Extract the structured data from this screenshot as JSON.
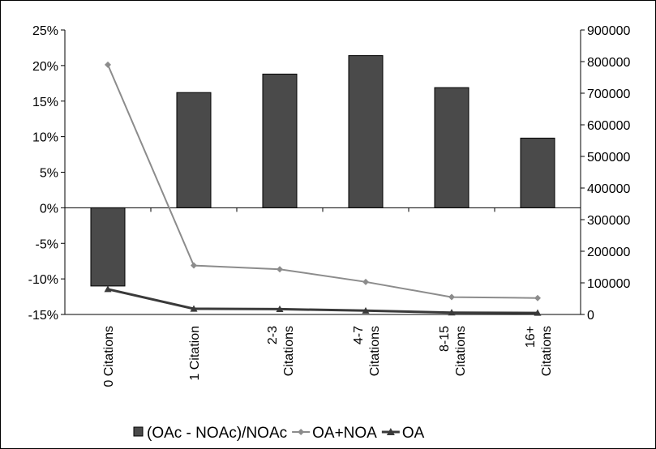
{
  "chart_data": {
    "type": "bar",
    "categories": [
      [
        "0 Citations"
      ],
      [
        "1 Citation"
      ],
      [
        "2-3",
        "Citations"
      ],
      [
        "4-7",
        "Citations"
      ],
      [
        "8-15",
        "Citations"
      ],
      [
        "16+",
        "Citations"
      ]
    ],
    "series": [
      {
        "name": "(OAc  - NOAc)/NOAc",
        "kind": "bar",
        "axis": "left",
        "color": "#4a4a4a",
        "values": [
          -0.11,
          0.162,
          0.188,
          0.214,
          0.169,
          0.098
        ]
      },
      {
        "name": "OA+NOA",
        "kind": "line",
        "axis": "right",
        "color": "#8c8c8c",
        "marker": "diamond",
        "values": [
          790000,
          155000,
          143000,
          103000,
          55000,
          52000
        ]
      },
      {
        "name": "OA",
        "kind": "line",
        "axis": "right",
        "color": "#3a3a3a",
        "marker": "triangle",
        "values": [
          80000,
          18000,
          17000,
          12000,
          6000,
          5000
        ]
      }
    ],
    "y_left": {
      "min": -0.15,
      "max": 0.25,
      "ticks": [
        -0.15,
        -0.1,
        -0.05,
        0,
        0.05,
        0.1,
        0.15,
        0.2,
        0.25
      ],
      "tick_labels": [
        "-15%",
        "-10%",
        "-5%",
        "0%",
        "5%",
        "10%",
        "15%",
        "20%",
        "25%"
      ]
    },
    "y_right": {
      "min": 0,
      "max": 900000,
      "ticks": [
        0,
        100000,
        200000,
        300000,
        400000,
        500000,
        600000,
        700000,
        800000,
        900000
      ],
      "tick_labels": [
        "0",
        "100000",
        "200000",
        "300000",
        "400000",
        "500000",
        "600000",
        "700000",
        "800000",
        "900000"
      ]
    },
    "grid": false,
    "legend_position": "bottom",
    "title": "",
    "xlabel": "",
    "ylabel": ""
  }
}
